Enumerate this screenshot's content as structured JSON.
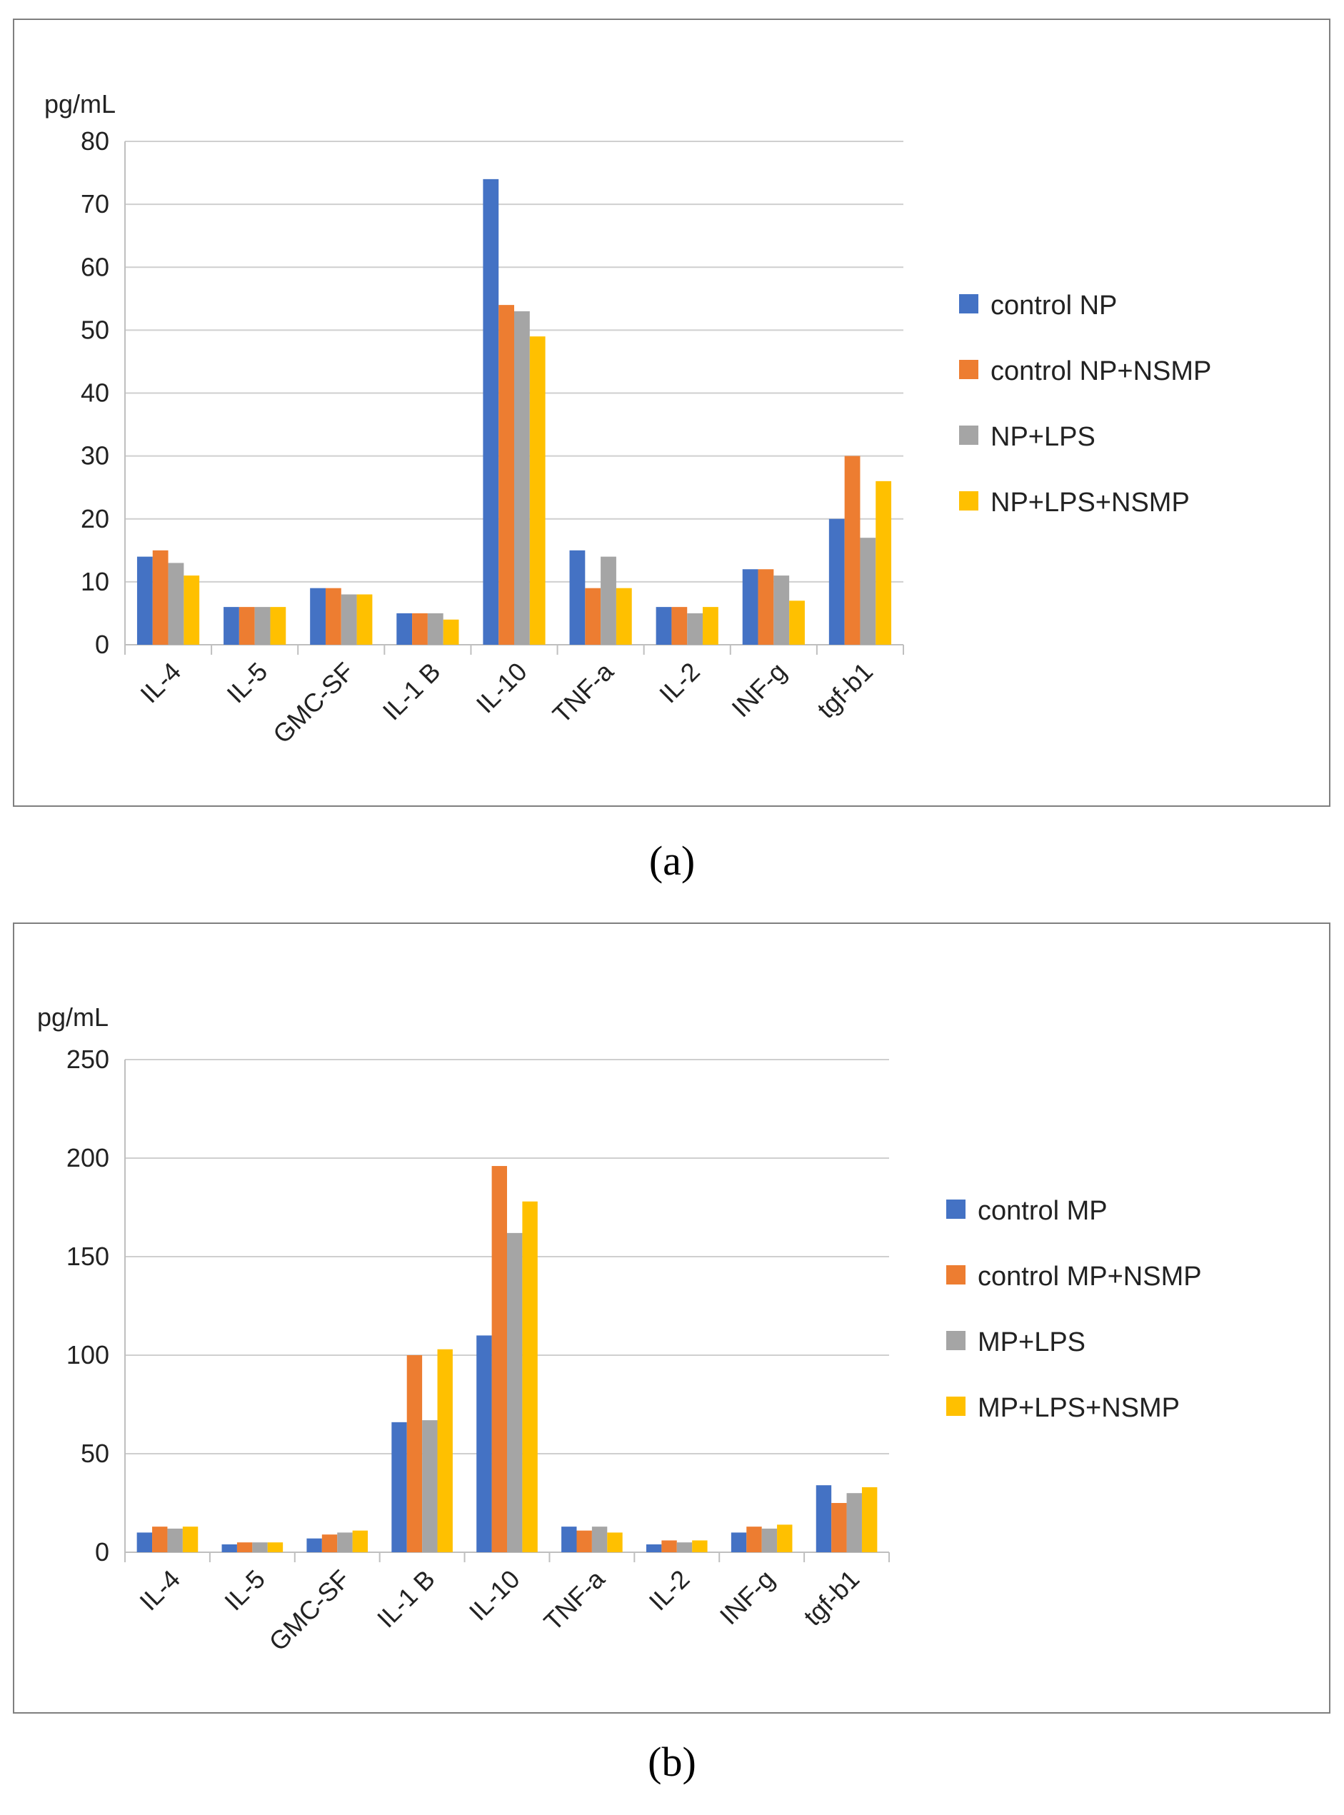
{
  "panels": [
    {
      "label": "(a)",
      "colors": [
        "#4472c4",
        "#ed7d31",
        "#a5a5a5",
        "#ffc000"
      ],
      "chart_data": {
        "type": "bar",
        "unit_label": "pg/mL",
        "categories": [
          "IL-4",
          "IL-5",
          "GMC-SF",
          "IL-1 B",
          "IL-10",
          "TNF-a",
          "IL-2",
          "INF-g",
          "tgf-b1"
        ],
        "ylim": [
          0,
          80
        ],
        "yticks": [
          0,
          10,
          20,
          30,
          40,
          50,
          60,
          70,
          80
        ],
        "grid": true,
        "legend_position": "right",
        "series": [
          {
            "name": "control  NP",
            "values": [
              14,
              6,
              9,
              5,
              74,
              15,
              6,
              12,
              20
            ]
          },
          {
            "name": "control NP+NSMP",
            "values": [
              15,
              6,
              9,
              5,
              54,
              9,
              6,
              12,
              30
            ]
          },
          {
            "name": "NP+LPS",
            "values": [
              13,
              6,
              8,
              5,
              53,
              14,
              5,
              11,
              17
            ]
          },
          {
            "name": "NP+LPS+NSMP",
            "values": [
              11,
              6,
              8,
              4,
              49,
              9,
              6,
              7,
              26
            ]
          }
        ]
      }
    },
    {
      "label": "(b)",
      "colors": [
        "#4472c4",
        "#ed7d31",
        "#a5a5a5",
        "#ffc000"
      ],
      "chart_data": {
        "type": "bar",
        "unit_label": "pg/mL",
        "categories": [
          "IL-4",
          "IL-5",
          "GMC-SF",
          "IL-1 B",
          "IL-10",
          "TNF-a",
          "IL-2",
          "INF-g",
          "tgf-b1"
        ],
        "ylim": [
          0,
          250
        ],
        "yticks": [
          0,
          50,
          100,
          150,
          200,
          250
        ],
        "grid": true,
        "legend_position": "right",
        "series": [
          {
            "name": "control MP",
            "values": [
              10,
              4,
              7,
              66,
              110,
              13,
              4,
              10,
              34
            ]
          },
          {
            "name": "control MP+NSMP",
            "values": [
              13,
              5,
              9,
              100,
              196,
              11,
              6,
              13,
              25
            ]
          },
          {
            "name": "MP+LPS",
            "values": [
              12,
              5,
              10,
              67,
              162,
              13,
              5,
              12,
              30
            ]
          },
          {
            "name": "MP+LPS+NSMP",
            "values": [
              13,
              5,
              11,
              103,
              178,
              10,
              6,
              14,
              33
            ]
          }
        ]
      }
    }
  ]
}
